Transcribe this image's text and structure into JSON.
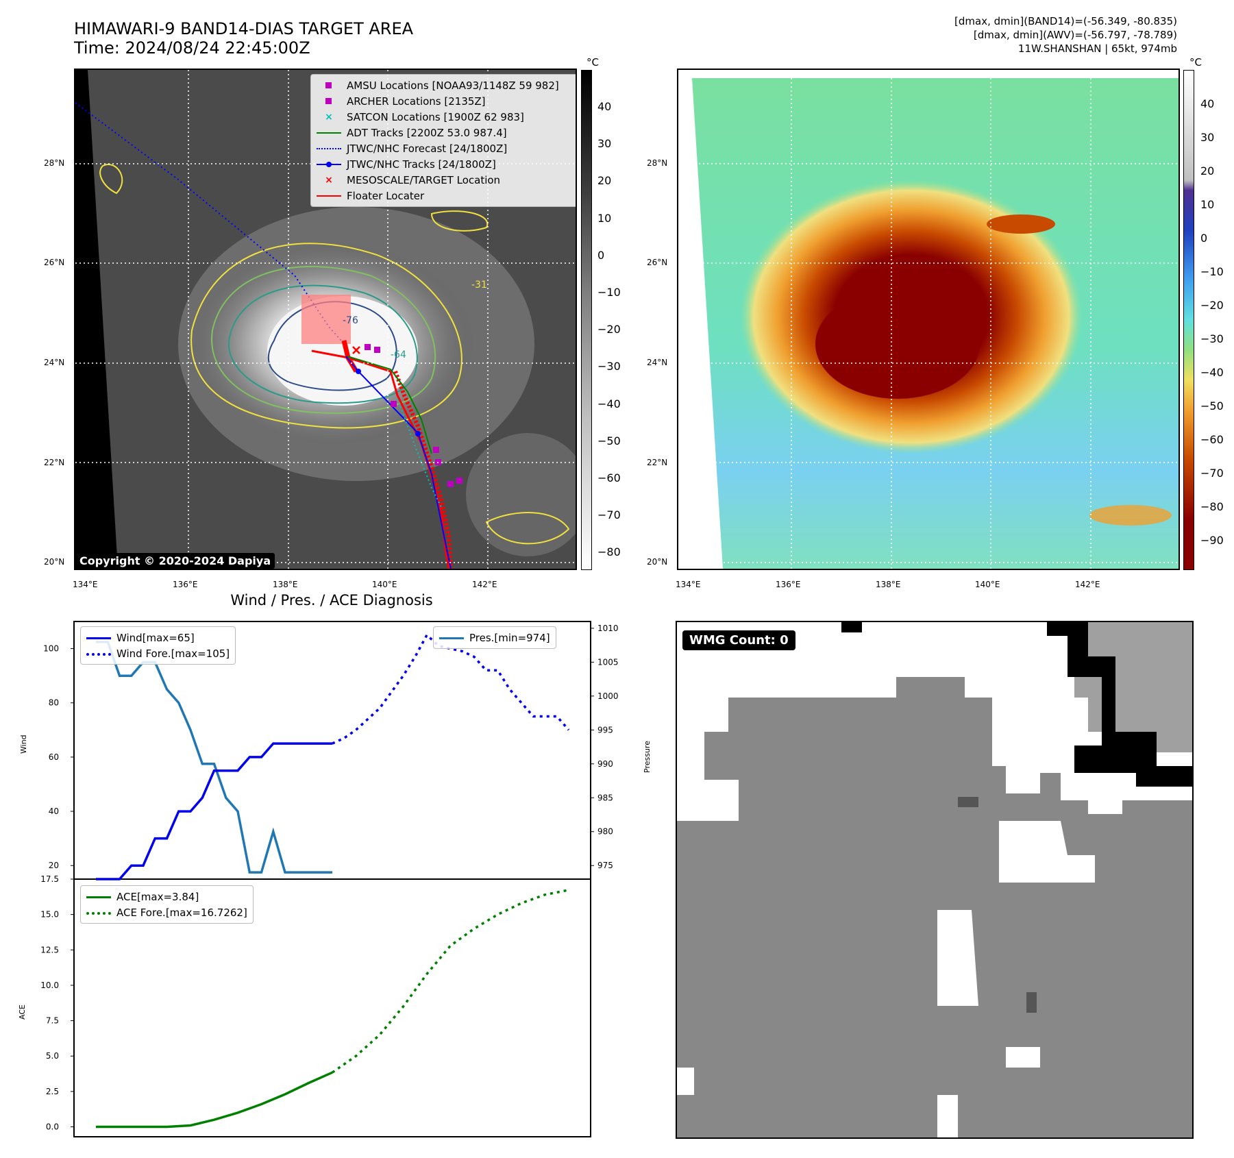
{
  "header": {
    "title_line1": "HIMAWARI-9 BAND14-DIAS TARGET AREA",
    "title_line2": "Time: 2024/08/24 22:45:00Z",
    "info_line1": "[dmax, dmin](BAND14)=(-56.349, -80.835)",
    "info_line2": "[dmax, dmin](AWV)=(-56.797, -78.789)",
    "info_line3": "11W.SHANSHAN | 65kt, 974mb"
  },
  "map": {
    "lon_ticks": [
      "134°E",
      "136°E",
      "138°E",
      "140°E",
      "142°E"
    ],
    "lat_ticks": [
      "28°N",
      "26°N",
      "24°N",
      "22°N",
      "20°N"
    ],
    "legend": [
      {
        "label": "AMSU Locations [NOAA93/1148Z 59 982]",
        "symbol": "square",
        "color": "#c000c0"
      },
      {
        "label": "ARCHER Locations [2135Z]",
        "symbol": "square",
        "color": "#c000c0"
      },
      {
        "label": "SATCON Locations [1900Z 62 983]",
        "symbol": "x",
        "color": "#00c0c0"
      },
      {
        "label": "ADT Tracks [2200Z 53.0 987.4]",
        "symbol": "line",
        "color": "#008000"
      },
      {
        "label": "JTWC/NHC Forecast [24/1800Z]",
        "symbol": "dotted",
        "color": "#0000ff"
      },
      {
        "label": "JTWC/NHC Tracks [24/1800Z]",
        "symbol": "linedot",
        "color": "#0000ff"
      },
      {
        "label": "MESOSCALE/TARGET Location",
        "symbol": "x",
        "color": "#ff0000"
      },
      {
        "label": "Floater Locater",
        "symbol": "line",
        "color": "#ff0000"
      }
    ],
    "copyright": "Copyright © 2020-2024 Dapiya",
    "contour_labels": [
      "-76",
      "-64",
      "-31"
    ]
  },
  "colorbar_left": {
    "unit": "°C",
    "ticks": [
      "40",
      "30",
      "20",
      "10",
      "0",
      "−10",
      "−20",
      "−30",
      "−40",
      "−50",
      "−60",
      "−70",
      "−80"
    ]
  },
  "colorbar_right": {
    "unit": "°C",
    "ticks": [
      "40",
      "30",
      "20",
      "10",
      "0",
      "−10",
      "−20",
      "−30",
      "−40",
      "−50",
      "−60",
      "−70",
      "−80",
      "−90"
    ]
  },
  "diagnosis": {
    "title": "Wind / Pres. / ACE Diagnosis",
    "wind_ylabel": "Wind",
    "pres_ylabel": "Pressure",
    "ace_ylabel": "ACE",
    "wind_ticks": [
      "100",
      "80",
      "60",
      "40",
      "20"
    ],
    "pres_ticks": [
      "1010",
      "1005",
      "1000",
      "995",
      "990",
      "985",
      "980",
      "975"
    ],
    "ace_ticks": [
      "17.5",
      "15.0",
      "12.5",
      "10.0",
      "7.5",
      "5.0",
      "2.5",
      "0.0"
    ],
    "legend_wind": "Wind[max=65]",
    "legend_wind_fore": "Wind Fore.[max=105]",
    "legend_pres": "Pres.[min=974]",
    "legend_ace": "ACE[max=3.84]",
    "legend_ace_fore": "ACE Fore.[max=16.7262]"
  },
  "wmg": {
    "label": "WMG Count: 0"
  },
  "chart_data": [
    {
      "type": "line",
      "title": "Wind / Pres. / ACE Diagnosis",
      "ylabel": "Wind",
      "ylim": [
        15,
        110
      ],
      "series": [
        {
          "name": "Wind[max=65]",
          "color": "#0000ee",
          "style": "solid",
          "x": [
            0,
            1,
            2,
            3,
            4,
            5,
            6,
            7,
            8,
            9,
            10,
            11,
            12,
            13,
            14,
            15,
            16,
            17,
            18,
            19,
            20
          ],
          "values": [
            15,
            15,
            15,
            20,
            20,
            30,
            30,
            40,
            40,
            45,
            55,
            55,
            55,
            60,
            60,
            65,
            65,
            65,
            65,
            65,
            65
          ]
        },
        {
          "name": "Wind Fore.[max=105]",
          "color": "#0000ee",
          "style": "dotted",
          "x": [
            20,
            21,
            22,
            23,
            24,
            25,
            26,
            27,
            28,
            29,
            30,
            31,
            32,
            33,
            34,
            35,
            36,
            37,
            38,
            39,
            40
          ],
          "values": [
            65,
            67,
            70,
            74,
            78,
            84,
            90,
            97,
            105,
            101,
            100,
            99,
            97,
            92,
            92,
            85,
            80,
            75,
            75,
            75,
            70
          ]
        }
      ]
    },
    {
      "type": "line",
      "ylabel": "Pressure",
      "ylim": [
        973,
        1011
      ],
      "series": [
        {
          "name": "Pres.[min=974]",
          "color": "#1f77b4",
          "style": "solid",
          "x": [
            0,
            1,
            2,
            3,
            4,
            5,
            6,
            7,
            8,
            9,
            10,
            11,
            12,
            13,
            14,
            15,
            16,
            17,
            18,
            19,
            20
          ],
          "values": [
            1008,
            1008,
            1003,
            1003,
            1005,
            1005,
            1001,
            999,
            995,
            990,
            990,
            985,
            983,
            974,
            974,
            980,
            974,
            974,
            974,
            974,
            974
          ]
        }
      ]
    },
    {
      "type": "line",
      "ylabel": "ACE",
      "ylim": [
        -0.7,
        17.5
      ],
      "series": [
        {
          "name": "ACE[max=3.84]",
          "color": "#008000",
          "style": "solid",
          "x": [
            0,
            2,
            4,
            6,
            8,
            10,
            12,
            14,
            16,
            18,
            20
          ],
          "values": [
            0,
            0,
            0,
            0,
            0.1,
            0.5,
            1,
            1.6,
            2.3,
            3.1,
            3.84
          ]
        },
        {
          "name": "ACE Fore.[max=16.7262]",
          "color": "#008000",
          "style": "dotted",
          "x": [
            20,
            22,
            24,
            26,
            28,
            30,
            32,
            34,
            36,
            38,
            40
          ],
          "values": [
            3.84,
            5,
            6.5,
            8.5,
            10.8,
            12.8,
            14,
            15,
            15.8,
            16.4,
            16.73
          ]
        }
      ]
    }
  ]
}
